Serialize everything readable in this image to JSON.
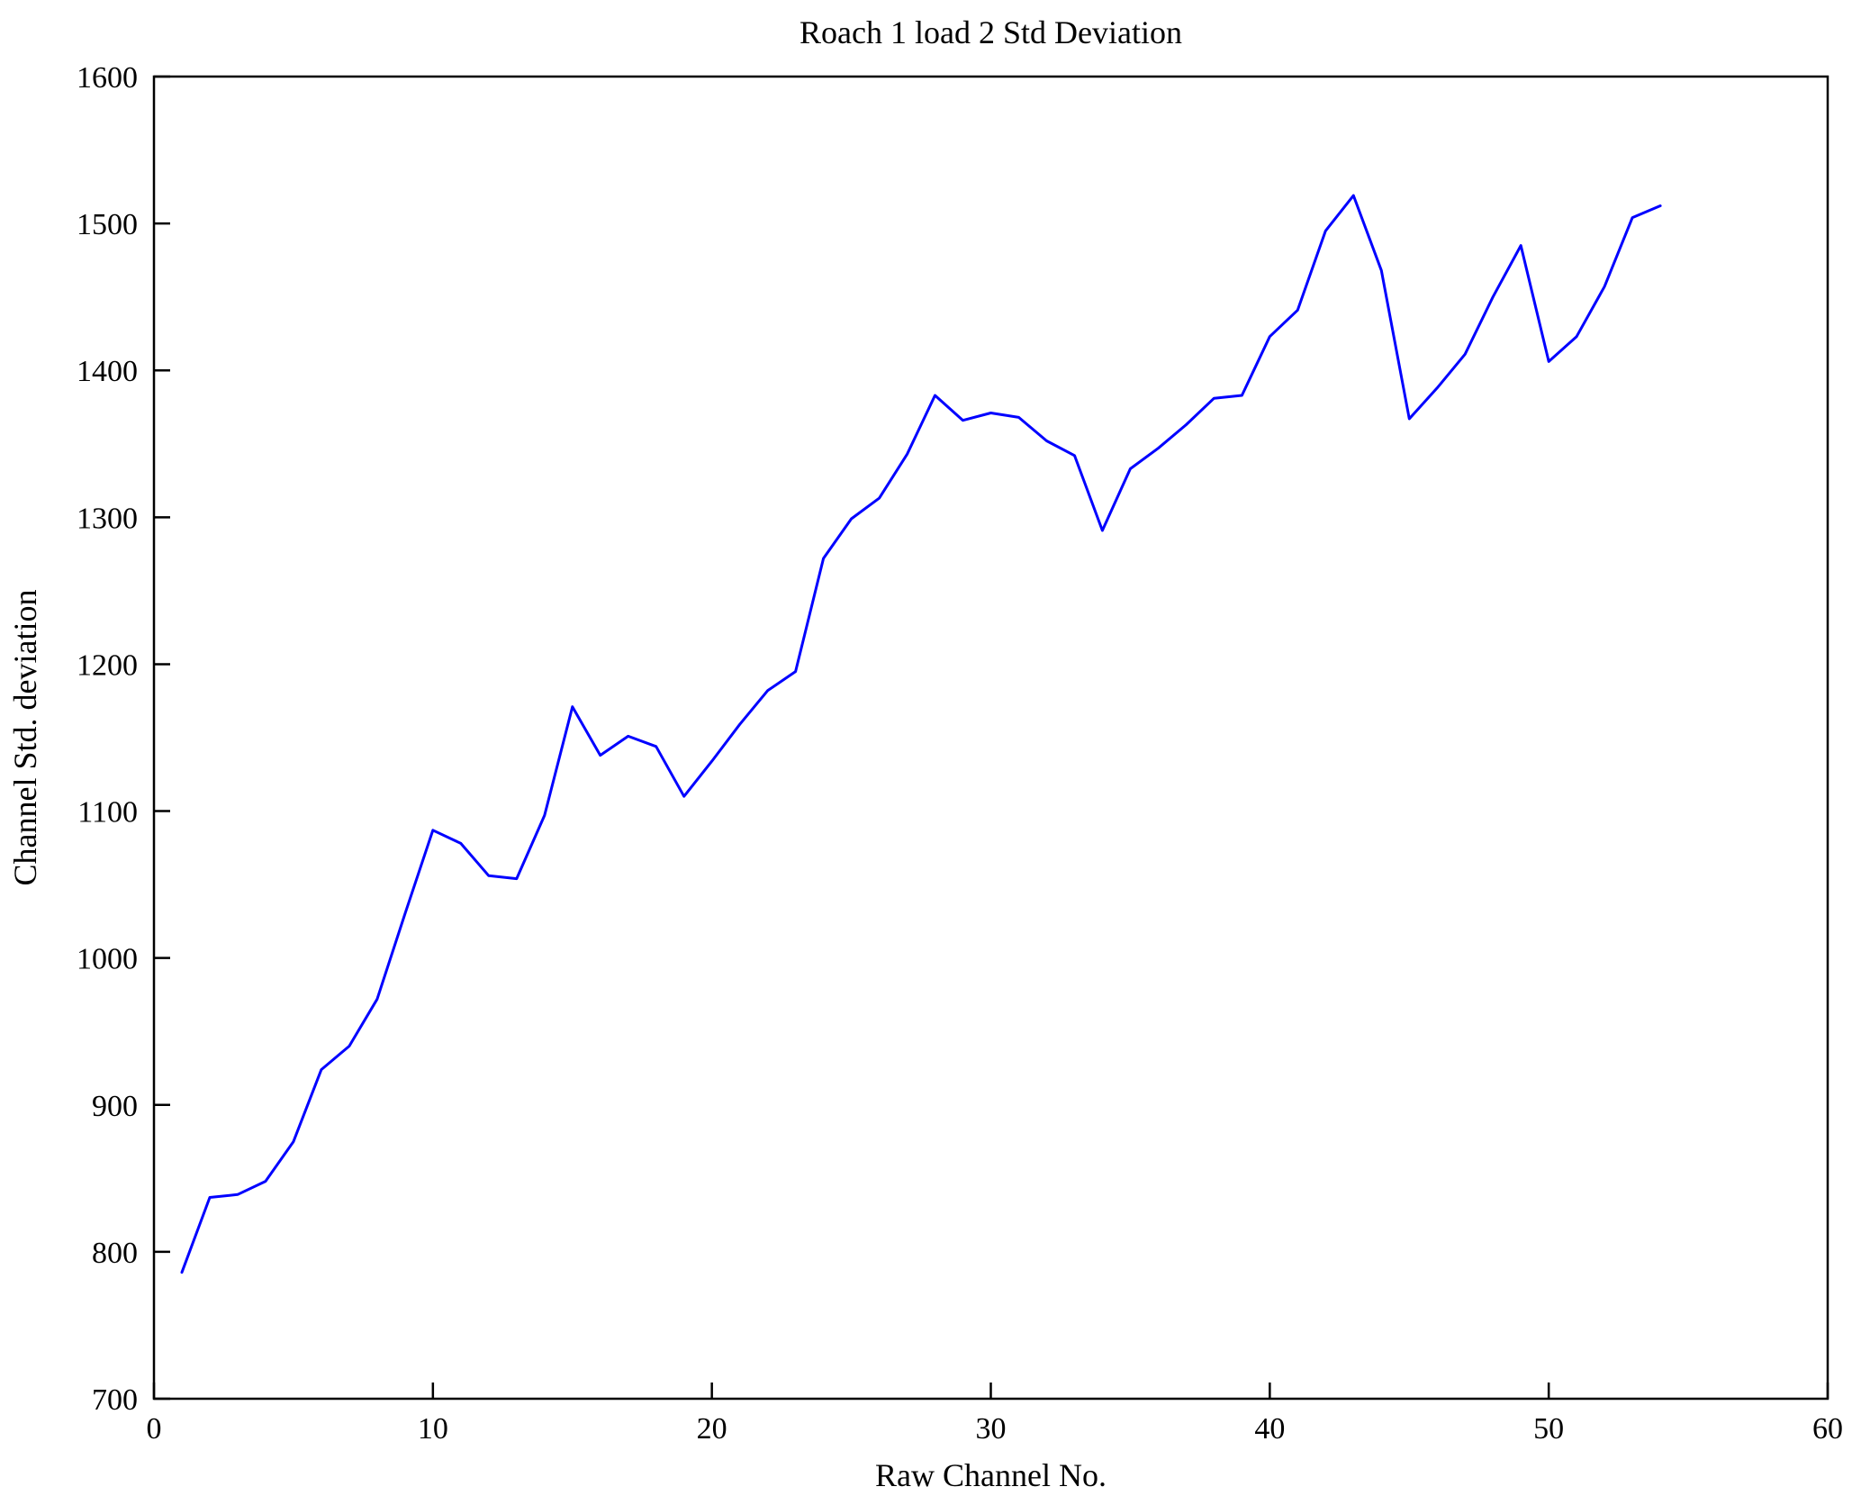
{
  "chart_data": {
    "type": "line",
    "title": "Roach 1 load 2 Std Deviation",
    "xlabel": "Raw Channel No.",
    "ylabel": "Channel Std. deviation",
    "xlim": [
      0,
      60
    ],
    "ylim": [
      700,
      1600
    ],
    "xticks": [
      0,
      10,
      20,
      30,
      40,
      50,
      60
    ],
    "yticks": [
      700,
      800,
      900,
      1000,
      1100,
      1200,
      1300,
      1400,
      1500,
      1600
    ],
    "grid": false,
    "legend": false,
    "line_color": "#0000ff",
    "axis_color": "#000000",
    "background_color": "#ffffff",
    "x": [
      1,
      2,
      3,
      4,
      5,
      6,
      7,
      8,
      9,
      10,
      11,
      12,
      13,
      14,
      15,
      16,
      17,
      18,
      19,
      20,
      21,
      22,
      23,
      24,
      25,
      26,
      27,
      28,
      29,
      30,
      31,
      32,
      33,
      34,
      35,
      36,
      37,
      38,
      39,
      40,
      41,
      42,
      43,
      44,
      45,
      46,
      47,
      48,
      49,
      50,
      51,
      52,
      53,
      54
    ],
    "series": [
      {
        "name": "Channel Std. deviation",
        "values": [
          786,
          837,
          839,
          848,
          875,
          924,
          940,
          972,
          1030,
          1087,
          1078,
          1056,
          1054,
          1097,
          1171,
          1138,
          1151,
          1144,
          1110,
          1134,
          1159,
          1182,
          1195,
          1272,
          1299,
          1313,
          1343,
          1383,
          1366,
          1371,
          1368,
          1352,
          1342,
          1291,
          1333,
          1347,
          1363,
          1381,
          1383,
          1423,
          1441,
          1495,
          1519,
          1468,
          1367,
          1388,
          1411,
          1450,
          1485,
          1406,
          1423,
          1457,
          1504,
          1512
        ]
      }
    ]
  }
}
